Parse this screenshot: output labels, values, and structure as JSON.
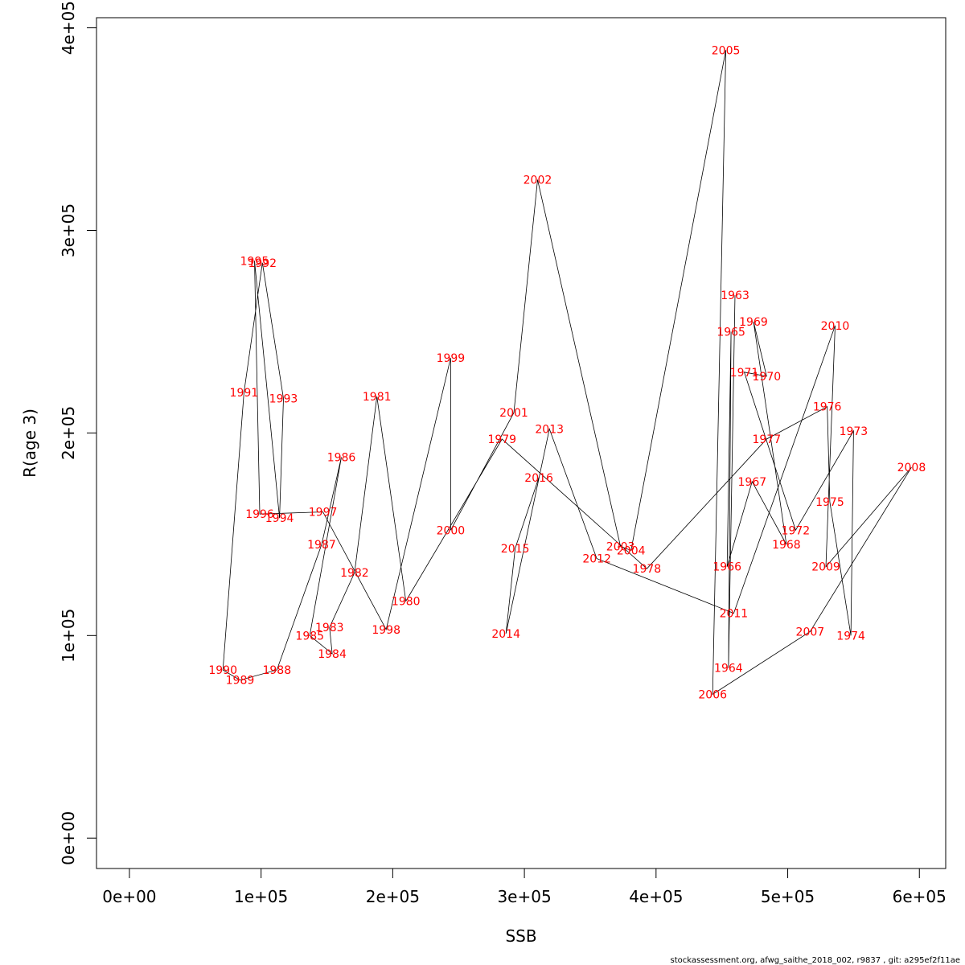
{
  "chart_data": {
    "type": "scatter",
    "xlabel": "SSB",
    "ylabel": "R(age 3)",
    "xlim": [
      -25000,
      620000
    ],
    "ylim": [
      -15000,
      405000
    ],
    "x_ticks": [
      0,
      100000,
      200000,
      300000,
      400000,
      500000,
      600000
    ],
    "x_tick_labels": [
      "0e+00",
      "1e+05",
      "2e+05",
      "3e+05",
      "4e+05",
      "5e+05",
      "6e+05"
    ],
    "y_ticks": [
      0,
      100000,
      200000,
      300000,
      400000
    ],
    "y_tick_labels": [
      "0e+00",
      "1e+05",
      "2e+05",
      "3e+05",
      "4e+05"
    ],
    "grid": false,
    "label_color": "#ff0000",
    "line_color": "#000000",
    "series": [
      {
        "points": [
          {
            "label": "1963",
            "x": 460000,
            "y": 268000
          },
          {
            "label": "1964",
            "x": 455000,
            "y": 84000
          },
          {
            "label": "1965",
            "x": 457000,
            "y": 250000
          },
          {
            "label": "1966",
            "x": 454000,
            "y": 134000
          },
          {
            "label": "1967",
            "x": 473000,
            "y": 176000
          },
          {
            "label": "1968",
            "x": 499000,
            "y": 145000
          },
          {
            "label": "1969",
            "x": 474000,
            "y": 255000
          },
          {
            "label": "1970",
            "x": 484000,
            "y": 228000
          },
          {
            "label": "1971",
            "x": 467000,
            "y": 230000
          },
          {
            "label": "1972",
            "x": 506000,
            "y": 152000
          },
          {
            "label": "1973",
            "x": 550000,
            "y": 201000
          },
          {
            "label": "1974",
            "x": 548000,
            "y": 100000
          },
          {
            "label": "1975",
            "x": 532000,
            "y": 166000
          },
          {
            "label": "1976",
            "x": 530000,
            "y": 213000
          },
          {
            "label": "1977",
            "x": 484000,
            "y": 197000
          },
          {
            "label": "1978",
            "x": 393000,
            "y": 133000
          },
          {
            "label": "1979",
            "x": 283000,
            "y": 197000
          },
          {
            "label": "1980",
            "x": 210000,
            "y": 117000
          },
          {
            "label": "1981",
            "x": 188000,
            "y": 218000
          },
          {
            "label": "1982",
            "x": 171000,
            "y": 131000
          },
          {
            "label": "1983",
            "x": 152000,
            "y": 104000
          },
          {
            "label": "1984",
            "x": 154000,
            "y": 91000
          },
          {
            "label": "1985",
            "x": 137000,
            "y": 100000
          },
          {
            "label": "1986",
            "x": 161000,
            "y": 188000
          },
          {
            "label": "1987",
            "x": 146000,
            "y": 145000
          },
          {
            "label": "1988",
            "x": 112000,
            "y": 83000
          },
          {
            "label": "1989",
            "x": 84000,
            "y": 78000
          },
          {
            "label": "1990",
            "x": 71000,
            "y": 83000
          },
          {
            "label": "1991",
            "x": 87000,
            "y": 220000
          },
          {
            "label": "1992",
            "x": 101000,
            "y": 284000
          },
          {
            "label": "1993",
            "x": 117000,
            "y": 217000
          },
          {
            "label": "1994",
            "x": 114000,
            "y": 158000
          },
          {
            "label": "1995",
            "x": 95000,
            "y": 285000
          },
          {
            "label": "1996",
            "x": 99000,
            "y": 160000
          },
          {
            "label": "1997",
            "x": 147000,
            "y": 161000
          },
          {
            "label": "1998",
            "x": 195000,
            "y": 103000
          },
          {
            "label": "1999",
            "x": 244000,
            "y": 237000
          },
          {
            "label": "2000",
            "x": 244000,
            "y": 152000
          },
          {
            "label": "2001",
            "x": 292000,
            "y": 210000
          },
          {
            "label": "2002",
            "x": 310000,
            "y": 325000
          },
          {
            "label": "2003",
            "x": 373000,
            "y": 144000
          },
          {
            "label": "2004",
            "x": 381000,
            "y": 142000
          },
          {
            "label": "2005",
            "x": 453000,
            "y": 389000
          },
          {
            "label": "2006",
            "x": 443000,
            "y": 71000
          },
          {
            "label": "2007",
            "x": 517000,
            "y": 102000
          },
          {
            "label": "2008",
            "x": 594000,
            "y": 183000
          },
          {
            "label": "2009",
            "x": 529000,
            "y": 134000
          },
          {
            "label": "2010",
            "x": 536000,
            "y": 253000
          },
          {
            "label": "2011",
            "x": 459000,
            "y": 111000
          },
          {
            "label": "2012",
            "x": 355000,
            "y": 138000
          },
          {
            "label": "2013",
            "x": 319000,
            "y": 202000
          },
          {
            "label": "2014",
            "x": 286000,
            "y": 101000
          },
          {
            "label": "2015",
            "x": 293000,
            "y": 143000
          },
          {
            "label": "2016",
            "x": 311000,
            "y": 178000
          }
        ]
      }
    ]
  },
  "footer": {
    "source_text": "stockassessment.org, afwg_saithe_2018_002, r9837 , git: a295ef2f11ae"
  }
}
